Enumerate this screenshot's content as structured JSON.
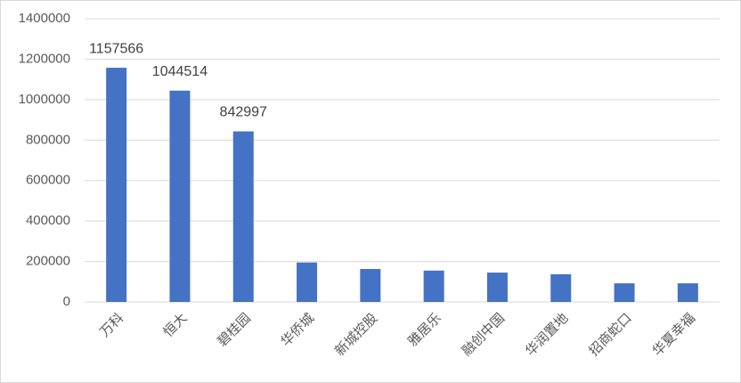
{
  "chart_data": {
    "type": "bar",
    "categories": [
      "万科",
      "恒大",
      "碧桂园",
      "华侨城",
      "新城控股",
      "雅居乐",
      "融创中国",
      "华润置地",
      "招商蛇口",
      "华夏幸福"
    ],
    "values": [
      1157566,
      1044514,
      842997,
      195000,
      163000,
      155000,
      145000,
      137000,
      92000,
      92000
    ],
    "value_labels": [
      "1157566",
      "1044514",
      "842997",
      null,
      null,
      null,
      null,
      null,
      null,
      null
    ],
    "color": "#4472c4",
    "ylim": [
      0,
      1400000
    ],
    "yticks": [
      0,
      200000,
      400000,
      600000,
      800000,
      1000000,
      1200000,
      1400000
    ],
    "grid": true
  }
}
